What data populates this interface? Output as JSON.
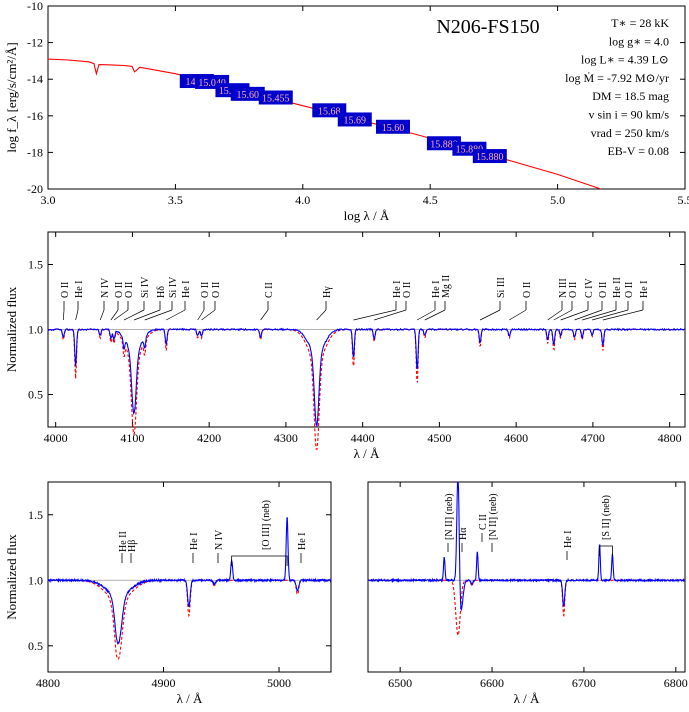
{
  "colors": {
    "observed": "#0000ff",
    "model": "#ff0000",
    "frame": "#000000",
    "continuum": "#999999",
    "marker_fill": "#0000cc",
    "marker_text": "#ffb0b0"
  },
  "chart_data": [
    {
      "type": "line",
      "panel": "sed",
      "title": "N206-FS150",
      "xlabel": "log λ / Å",
      "ylabel": "log f_λ [erg/s/cm²/Å]",
      "xlim": [
        3.0,
        5.5
      ],
      "ylim": [
        -20,
        -10
      ],
      "xticks": [
        "3.0",
        "3.5",
        "4.0",
        "4.5",
        "5.0",
        "5.5"
      ],
      "yticks": [
        "-10",
        "-12",
        "-14",
        "-16",
        "-18",
        "-20"
      ],
      "model_sed": {
        "x": [
          3.0,
          3.08,
          3.16,
          3.18,
          3.19,
          3.2,
          3.25,
          3.3,
          3.33,
          3.34,
          3.36,
          3.4,
          3.5,
          3.6,
          3.7,
          3.8,
          3.9,
          4.0,
          4.2,
          4.4,
          4.6,
          4.8,
          5.0,
          5.17
        ],
        "y": [
          -12.9,
          -12.95,
          -13.05,
          -13.15,
          -13.7,
          -13.2,
          -13.22,
          -13.25,
          -13.3,
          -13.6,
          -13.35,
          -13.45,
          -13.7,
          -14.05,
          -14.4,
          -14.75,
          -15.1,
          -15.45,
          -16.15,
          -16.85,
          -17.6,
          -18.4,
          -19.2,
          -20.0
        ]
      },
      "photometry": [
        {
          "label": "14.51",
          "logl": 3.58,
          "logf": -14.1
        },
        {
          "label": "15.040",
          "logl": 3.64,
          "logf": -14.15
        },
        {
          "label": "15.272",
          "logl": 3.72,
          "logf": -14.6
        },
        {
          "label": "15.60",
          "logl": 3.78,
          "logf": -14.8
        },
        {
          "label": "15.455",
          "logl": 3.89,
          "logf": -15.0
        },
        {
          "label": "15.68",
          "logl": 4.1,
          "logf": -15.7
        },
        {
          "label": "15.69",
          "logl": 4.2,
          "logf": -16.2
        },
        {
          "label": "15.60",
          "logl": 4.35,
          "logf": -16.6
        },
        {
          "label": "15.889",
          "logl": 4.55,
          "logf": -17.5
        },
        {
          "label": "15.880",
          "logl": 4.65,
          "logf": -17.8
        },
        {
          "label": "15.880",
          "logl": 4.73,
          "logf": -18.2
        }
      ],
      "parameters": [
        "T∗ = 28 kK",
        "log g∗ = 4.0",
        "log L∗ = 4.39 L⊙",
        "log Ṁ = -7.92 M⊙/yr",
        "DM = 18.5 mag",
        "v sin i = 90 km/s",
        "vrad = 250 km/s",
        "EB-V = 0.08"
      ]
    },
    {
      "type": "line",
      "panel": "blue",
      "xlabel": "λ / Å",
      "ylabel": "Normalized flux",
      "xlim": [
        3990,
        4820
      ],
      "ylim": [
        0.25,
        1.75
      ],
      "xticks": [
        "4000",
        "4100",
        "4200",
        "4300",
        "4400",
        "4500",
        "4600",
        "4700",
        "4800"
      ],
      "yticks": [
        "0.5",
        "1.0",
        "1.5"
      ],
      "lines": [
        {
          "label": "O II",
          "x": 4010,
          "depth": 0.06
        },
        {
          "label": "He I",
          "x": 4026,
          "depth": 0.28
        },
        {
          "label": "N IV",
          "x": 4058,
          "depth": 0.05
        },
        {
          "label": "O II",
          "x": 4072,
          "depth": 0.07
        },
        {
          "label": "O II",
          "x": 4076,
          "depth": 0.07
        },
        {
          "label": "Si IV",
          "x": 4089,
          "depth": 0.08
        },
        {
          "label": "Hδ",
          "x": 4102,
          "depth": 0.48
        },
        {
          "label": "Si IV",
          "x": 4116,
          "depth": 0.08
        },
        {
          "label": "He I",
          "x": 4144,
          "depth": 0.12
        },
        {
          "label": "O II",
          "x": 4185,
          "depth": 0.05
        },
        {
          "label": "O II",
          "x": 4190,
          "depth": 0.05
        },
        {
          "label": "C II",
          "x": 4267,
          "depth": 0.06
        },
        {
          "label": "Hγ",
          "x": 4340,
          "depth": 0.55
        },
        {
          "label": "He I",
          "x": 4388,
          "depth": 0.22
        },
        {
          "label": "O II",
          "x": 4415,
          "depth": 0.07
        },
        {
          "label": "He I",
          "x": 4471,
          "depth": 0.32
        },
        {
          "label": "Mg II",
          "x": 4481,
          "depth": 0.05
        },
        {
          "label": "Si III",
          "x": 4553,
          "depth": 0.1
        },
        {
          "label": "O II",
          "x": 4591,
          "depth": 0.05
        },
        {
          "label": "N III",
          "x": 4641,
          "depth": 0.08
        },
        {
          "label": "O II",
          "x": 4649,
          "depth": 0.12
        },
        {
          "label": "C IV",
          "x": 4658,
          "depth": 0.05
        },
        {
          "label": "O II",
          "x": 4676,
          "depth": 0.06
        },
        {
          "label": "He II",
          "x": 4686,
          "depth": 0.06
        },
        {
          "label": "O II",
          "x": 4699,
          "depth": 0.04
        },
        {
          "label": "He I",
          "x": 4713,
          "depth": 0.12
        }
      ]
    },
    {
      "type": "line",
      "panel": "hbeta",
      "xlabel": "λ / Å",
      "ylabel": "Normalized flux",
      "xlim": [
        4800,
        5045
      ],
      "ylim": [
        0.3,
        1.75
      ],
      "xticks": [
        "4800",
        "4900",
        "5000"
      ],
      "yticks": [
        "0.5",
        "1.0",
        "1.5"
      ],
      "lines": [
        {
          "label": "He II",
          "x": 4859,
          "depth": 0.03
        },
        {
          "label": "Hβ",
          "x": 4861,
          "depth": 0.35
        },
        {
          "label": "He I",
          "x": 4922,
          "depth": 0.2
        },
        {
          "label": "N IV",
          "x": 4944,
          "depth": 0.03
        },
        {
          "label": "[O III] (neb)",
          "x": 4959,
          "depth": -0.15
        },
        {
          "label": "[O III] (neb)",
          "x": 5007,
          "depth": -0.48
        },
        {
          "label": "He I",
          "x": 5016,
          "depth": 0.08
        }
      ]
    },
    {
      "type": "line",
      "panel": "halpha",
      "xlabel": "λ / Å",
      "ylim": [
        0.3,
        1.75
      ],
      "xlim": [
        6465,
        6810
      ],
      "xticks": [
        "6500",
        "6600",
        "6700",
        "6800"
      ],
      "yticks": [],
      "lines": [
        {
          "label": "[N II] (neb)",
          "x": 6548,
          "depth": -0.18
        },
        {
          "label": "Hα",
          "x": 6563,
          "depth": -0.9
        },
        {
          "label": "C II",
          "x": 6578,
          "depth": 0.03
        },
        {
          "label": "[N II] (neb)",
          "x": 6584,
          "depth": -0.22
        },
        {
          "label": "He I",
          "x": 6678,
          "depth": 0.2
        },
        {
          "label": "[S II] (neb)",
          "x": 6717,
          "depth": -0.28
        },
        {
          "label": "[S II] (neb)",
          "x": 6731,
          "depth": -0.2
        }
      ]
    }
  ]
}
